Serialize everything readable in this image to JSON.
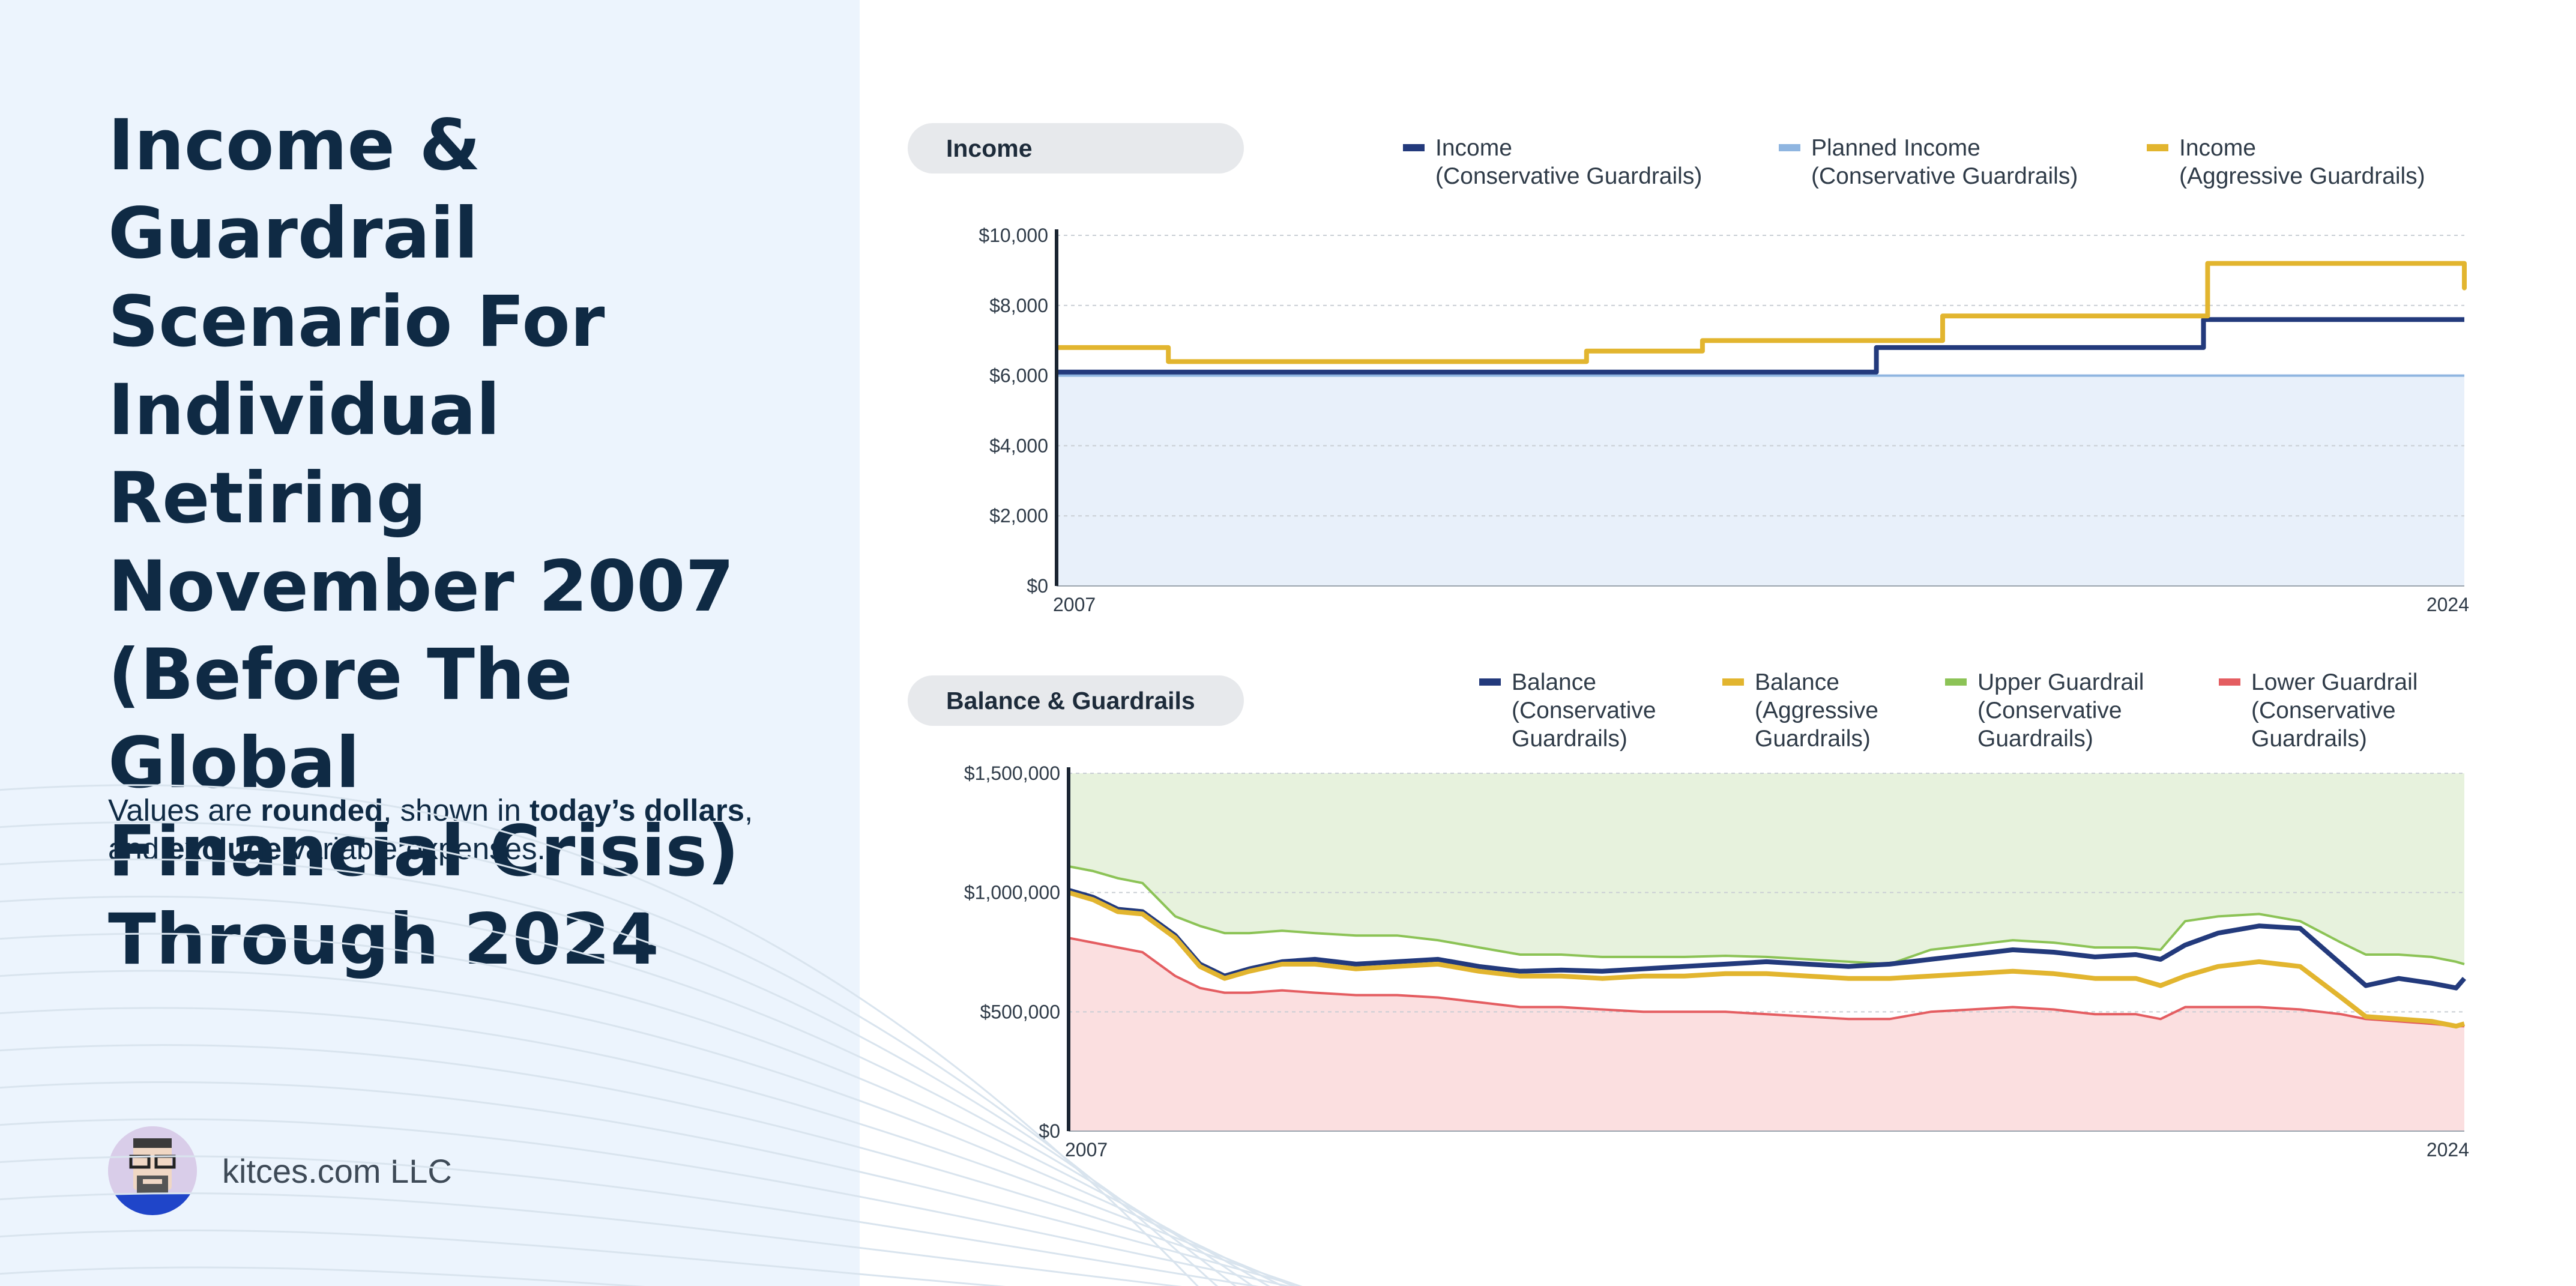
{
  "page": {
    "title_lines": [
      "Income & Guardrail",
      "Scenario For",
      "Individual Retiring",
      "November 2007",
      "(Before The Global",
      "Financial Crisis)",
      "Through 2024"
    ],
    "subtitle": {
      "t1": "Values are ",
      "b1": "rounded",
      "t2": ", shown in ",
      "b2": "today’s dollars",
      "t3": ", and ",
      "b3": "exclude",
      "t4": " variable expenses."
    },
    "brand": "kitces.com LLC"
  },
  "colors": {
    "conservative": "#233a7c",
    "planned": "#8fb5e0",
    "aggressive": "#e2b52f",
    "upper": "#8cc356",
    "lower": "#e45d61",
    "income_fill": "#e8f0fa",
    "upper_fill": "#e7f2dd",
    "lower_fill": "#fbdfe0"
  },
  "chart_data": [
    {
      "type": "line",
      "label": "Income",
      "x_range": [
        2007.0,
        2024.0
      ],
      "x_tick_labels": [
        "2007",
        "2024"
      ],
      "ylim": [
        0,
        10000
      ],
      "y_ticks": [
        0,
        2000,
        4000,
        6000,
        8000,
        10000
      ],
      "y_tick_labels": [
        "$0",
        "$2,000",
        "$4,000",
        "$6,000",
        "$8,000",
        "$10,000"
      ],
      "grid": true,
      "legend_position": "top",
      "series": [
        {
          "name": "Income\n(Conservative Guardrails)",
          "color_key": "conservative",
          "step": true,
          "points": [
            [
              2007.0,
              6100
            ],
            [
              2016.8,
              6100
            ],
            [
              2016.9,
              6800
            ],
            [
              2020.7,
              6800
            ],
            [
              2020.85,
              7600
            ],
            [
              2024.0,
              7600
            ]
          ]
        },
        {
          "name": "Planned Income\n(Conservative Guardrails)",
          "color_key": "planned",
          "step": true,
          "fill": true,
          "points": [
            [
              2007.0,
              6000
            ],
            [
              2024.0,
              6000
            ]
          ]
        },
        {
          "name": "Income\n(Aggressive Guardrails)",
          "color_key": "aggressive",
          "step": true,
          "points": [
            [
              2007.0,
              6800
            ],
            [
              2008.25,
              6800
            ],
            [
              2008.35,
              6400
            ],
            [
              2013.3,
              6400
            ],
            [
              2013.4,
              6700
            ],
            [
              2014.7,
              6700
            ],
            [
              2014.8,
              7000
            ],
            [
              2017.6,
              7000
            ],
            [
              2017.7,
              7700
            ],
            [
              2020.8,
              7700
            ],
            [
              2020.9,
              9200
            ],
            [
              2024.55,
              9200
            ],
            [
              2024.65,
              8500
            ],
            [
              2024.0,
              8500
            ]
          ]
        }
      ]
    },
    {
      "type": "line",
      "label": "Balance & Guardrails",
      "x_range": [
        2007.0,
        2024.0
      ],
      "x_tick_labels": [
        "2007",
        "2024"
      ],
      "ylim": [
        0,
        1500000
      ],
      "y_ticks": [
        0,
        500000,
        1000000,
        1500000
      ],
      "y_tick_labels": [
        "$0",
        "$500,000",
        "$1,000,000",
        "$1,500,000"
      ],
      "grid": true,
      "legend_position": "top",
      "series": [
        {
          "name": "Balance\n(Conservative\nGuardrails)",
          "color_key": "conservative",
          "points": [
            [
              2007.0,
              1010000
            ],
            [
              2007.3,
              980000
            ],
            [
              2007.6,
              930000
            ],
            [
              2007.9,
              920000
            ],
            [
              2008.3,
              820000
            ],
            [
              2008.6,
              700000
            ],
            [
              2008.9,
              650000
            ],
            [
              2009.2,
              680000
            ],
            [
              2009.6,
              710000
            ],
            [
              2010.0,
              720000
            ],
            [
              2010.5,
              700000
            ],
            [
              2011.0,
              710000
            ],
            [
              2011.5,
              720000
            ],
            [
              2012.0,
              690000
            ],
            [
              2012.5,
              670000
            ],
            [
              2013.0,
              675000
            ],
            [
              2013.5,
              670000
            ],
            [
              2014.0,
              680000
            ],
            [
              2014.5,
              690000
            ],
            [
              2015.0,
              700000
            ],
            [
              2015.5,
              710000
            ],
            [
              2016.0,
              700000
            ],
            [
              2016.5,
              690000
            ],
            [
              2017.0,
              700000
            ],
            [
              2017.5,
              720000
            ],
            [
              2018.0,
              740000
            ],
            [
              2018.5,
              760000
            ],
            [
              2019.0,
              750000
            ],
            [
              2019.5,
              730000
            ],
            [
              2020.0,
              740000
            ],
            [
              2020.3,
              720000
            ],
            [
              2020.6,
              780000
            ],
            [
              2021.0,
              830000
            ],
            [
              2021.5,
              860000
            ],
            [
              2022.0,
              850000
            ],
            [
              2022.5,
              700000
            ],
            [
              2022.8,
              610000
            ],
            [
              2023.2,
              640000
            ],
            [
              2023.6,
              620000
            ],
            [
              2023.9,
              600000
            ],
            [
              2024.0,
              640000
            ]
          ]
        },
        {
          "name": "Balance\n(Aggressive\nGuardrails)",
          "color_key": "aggressive",
          "points": [
            [
              2007.0,
              1000000
            ],
            [
              2007.3,
              970000
            ],
            [
              2007.6,
              920000
            ],
            [
              2007.9,
              910000
            ],
            [
              2008.3,
              810000
            ],
            [
              2008.6,
              690000
            ],
            [
              2008.9,
              640000
            ],
            [
              2009.2,
              670000
            ],
            [
              2009.6,
              700000
            ],
            [
              2010.0,
              700000
            ],
            [
              2010.5,
              680000
            ],
            [
              2011.0,
              690000
            ],
            [
              2011.5,
              700000
            ],
            [
              2012.0,
              670000
            ],
            [
              2012.5,
              650000
            ],
            [
              2013.0,
              650000
            ],
            [
              2013.5,
              640000
            ],
            [
              2014.0,
              650000
            ],
            [
              2014.5,
              650000
            ],
            [
              2015.0,
              660000
            ],
            [
              2015.5,
              660000
            ],
            [
              2016.0,
              650000
            ],
            [
              2016.5,
              640000
            ],
            [
              2017.0,
              640000
            ],
            [
              2017.5,
              650000
            ],
            [
              2018.0,
              660000
            ],
            [
              2018.5,
              670000
            ],
            [
              2019.0,
              660000
            ],
            [
              2019.5,
              640000
            ],
            [
              2020.0,
              640000
            ],
            [
              2020.3,
              610000
            ],
            [
              2020.6,
              650000
            ],
            [
              2021.0,
              690000
            ],
            [
              2021.5,
              710000
            ],
            [
              2022.0,
              690000
            ],
            [
              2022.5,
              560000
            ],
            [
              2022.8,
              480000
            ],
            [
              2023.2,
              470000
            ],
            [
              2023.6,
              460000
            ],
            [
              2023.9,
              440000
            ],
            [
              2024.0,
              450000
            ]
          ]
        },
        {
          "name": "Upper Guardrail\n(Conservative\nGuardrails)",
          "color_key": "upper",
          "fill": "upper",
          "points": [
            [
              2007.0,
              1110000
            ],
            [
              2007.3,
              1090000
            ],
            [
              2007.6,
              1060000
            ],
            [
              2007.9,
              1040000
            ],
            [
              2008.3,
              900000
            ],
            [
              2008.6,
              860000
            ],
            [
              2008.9,
              830000
            ],
            [
              2009.2,
              830000
            ],
            [
              2009.6,
              840000
            ],
            [
              2010.0,
              830000
            ],
            [
              2010.5,
              820000
            ],
            [
              2011.0,
              820000
            ],
            [
              2011.5,
              800000
            ],
            [
              2012.0,
              770000
            ],
            [
              2012.5,
              740000
            ],
            [
              2013.0,
              740000
            ],
            [
              2013.5,
              730000
            ],
            [
              2014.0,
              730000
            ],
            [
              2014.5,
              730000
            ],
            [
              2015.0,
              735000
            ],
            [
              2015.5,
              730000
            ],
            [
              2016.0,
              720000
            ],
            [
              2016.5,
              710000
            ],
            [
              2017.0,
              700000
            ],
            [
              2017.5,
              760000
            ],
            [
              2018.0,
              780000
            ],
            [
              2018.5,
              800000
            ],
            [
              2019.0,
              790000
            ],
            [
              2019.5,
              770000
            ],
            [
              2020.0,
              770000
            ],
            [
              2020.3,
              760000
            ],
            [
              2020.6,
              880000
            ],
            [
              2021.0,
              900000
            ],
            [
              2021.5,
              910000
            ],
            [
              2022.0,
              880000
            ],
            [
              2022.5,
              790000
            ],
            [
              2022.8,
              740000
            ],
            [
              2023.2,
              740000
            ],
            [
              2023.6,
              730000
            ],
            [
              2023.9,
              710000
            ],
            [
              2024.0,
              700000
            ]
          ]
        },
        {
          "name": "Lower Guardrail\n(Conservative\nGuardrails)",
          "color_key": "lower",
          "fill": "lower",
          "points": [
            [
              2007.0,
              810000
            ],
            [
              2007.3,
              790000
            ],
            [
              2007.6,
              770000
            ],
            [
              2007.9,
              750000
            ],
            [
              2008.3,
              650000
            ],
            [
              2008.6,
              600000
            ],
            [
              2008.9,
              580000
            ],
            [
              2009.2,
              580000
            ],
            [
              2009.6,
              590000
            ],
            [
              2010.0,
              580000
            ],
            [
              2010.5,
              570000
            ],
            [
              2011.0,
              570000
            ],
            [
              2011.5,
              560000
            ],
            [
              2012.0,
              540000
            ],
            [
              2012.5,
              520000
            ],
            [
              2013.0,
              520000
            ],
            [
              2013.5,
              510000
            ],
            [
              2014.0,
              500000
            ],
            [
              2014.5,
              500000
            ],
            [
              2015.0,
              500000
            ],
            [
              2015.5,
              490000
            ],
            [
              2016.0,
              480000
            ],
            [
              2016.5,
              470000
            ],
            [
              2017.0,
              470000
            ],
            [
              2017.5,
              500000
            ],
            [
              2018.0,
              510000
            ],
            [
              2018.5,
              520000
            ],
            [
              2019.0,
              510000
            ],
            [
              2019.5,
              490000
            ],
            [
              2020.0,
              490000
            ],
            [
              2020.3,
              470000
            ],
            [
              2020.6,
              520000
            ],
            [
              2021.0,
              520000
            ],
            [
              2021.5,
              520000
            ],
            [
              2022.0,
              510000
            ],
            [
              2022.5,
              490000
            ],
            [
              2022.8,
              470000
            ],
            [
              2023.2,
              460000
            ],
            [
              2023.6,
              450000
            ],
            [
              2023.9,
              440000
            ],
            [
              2024.0,
              440000
            ]
          ]
        }
      ]
    }
  ]
}
